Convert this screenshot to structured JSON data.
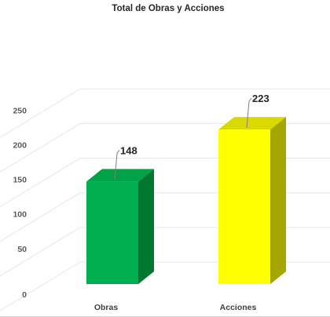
{
  "chart_data": {
    "type": "bar",
    "title": "Total de Obras y Acciones",
    "categories": [
      "Obras",
      "Acciones"
    ],
    "values": [
      148,
      223
    ],
    "value_labels": [
      "148",
      "223"
    ],
    "ylim": [
      0,
      250
    ],
    "yticks": [
      0,
      50,
      100,
      150,
      200,
      250
    ],
    "ytick_labels": [
      "0",
      "50",
      "100",
      "150",
      "200",
      "250"
    ],
    "xlabel": "",
    "ylabel": "",
    "grid": true,
    "style": "3d-column",
    "colors": {
      "Obras": {
        "front": "#00B050",
        "side": "#00782F",
        "top": "#00A345"
      },
      "Acciones": {
        "front": "#FFFF00",
        "side": "#A6A600",
        "top": "#D9D900"
      }
    },
    "gridline_color": "#e6e6e6",
    "leader_line_color": "#7f7f7f"
  }
}
